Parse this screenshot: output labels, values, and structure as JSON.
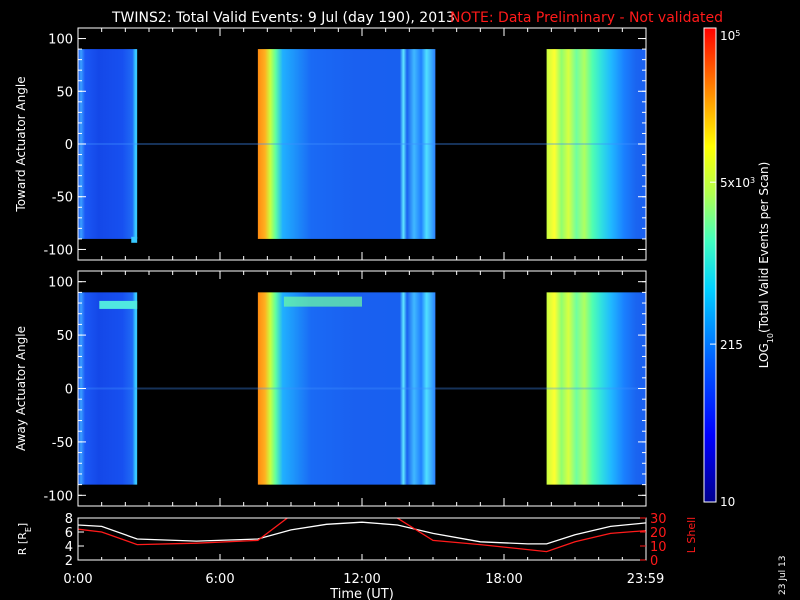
{
  "header": {
    "title": "TWINS2: Total Valid Events:  9 Jul (day 190), 2013",
    "note": "NOTE: Data Preliminary - Not validated"
  },
  "colors": {
    "note_red": "#ff1a1a",
    "axis": "#ffffff",
    "background": "#000000"
  },
  "colorbar": {
    "label": "LOG10(Total Valid Events per Scan)",
    "label_main": "LOG",
    "label_sub": "10",
    "label_rest": "(Total Valid Events per Scan)",
    "ticks": [
      {
        "label": "10",
        "value": 10
      },
      {
        "label": "215",
        "value": 215
      },
      {
        "label": "5x10",
        "sup": "3",
        "value": 5000
      },
      {
        "label": "10",
        "sup": "5",
        "value": 100000
      }
    ],
    "scale": "log",
    "range": [
      10,
      100000
    ]
  },
  "date_stamp": "23 Jul 13",
  "chart_data": [
    {
      "type": "heatmap",
      "name": "toward",
      "ylabel": "Toward Actuator Angle",
      "ylim": [
        -110,
        110
      ],
      "yticks": [
        -100,
        -50,
        0,
        50,
        100
      ],
      "x_unit": "hours UT",
      "segments": [
        {
          "t_start": 0.0,
          "t_end": 2.5,
          "level": "low"
        },
        {
          "t_start": 7.6,
          "t_end": 15.1,
          "level": "high-then-mid"
        },
        {
          "t_start": 19.8,
          "t_end": 24.0,
          "level": "mid"
        }
      ]
    },
    {
      "type": "heatmap",
      "name": "away",
      "ylabel": "Away Actuator Angle",
      "ylim": [
        -110,
        110
      ],
      "yticks": [
        -100,
        -50,
        0,
        50,
        100
      ],
      "x_unit": "hours UT",
      "segments": [
        {
          "t_start": 0.0,
          "t_end": 2.5,
          "level": "low"
        },
        {
          "t_start": 7.6,
          "t_end": 15.1,
          "level": "high-then-mid"
        },
        {
          "t_start": 19.8,
          "t_end": 24.0,
          "level": "mid"
        }
      ]
    },
    {
      "type": "line",
      "name": "orbit",
      "xlabel": "Time (UT)",
      "ylabel_left": "R [R",
      "ylabel_left_sub": "E",
      "ylabel_left_end": "]",
      "ylabel_right": "L Shell",
      "ylim_left": [
        2,
        8
      ],
      "ylim_right": [
        0,
        30
      ],
      "yticks_left": [
        2,
        4,
        6,
        8
      ],
      "yticks_right": [
        0,
        10,
        20,
        30
      ],
      "xticks": [
        {
          "label": "0:00",
          "value": 0
        },
        {
          "label": "6:00",
          "value": 6
        },
        {
          "label": "12:00",
          "value": 12
        },
        {
          "label": "18:00",
          "value": 18
        },
        {
          "label": "23:59",
          "value": 23.98
        }
      ],
      "series": [
        {
          "color": "#ffffff",
          "axis": "left",
          "x": [
            0,
            1,
            2.5,
            5,
            7.6,
            9,
            10.5,
            12,
            13.5,
            15,
            17,
            19,
            19.8,
            21,
            22.5,
            24
          ],
          "y": [
            7.0,
            6.8,
            5.0,
            4.7,
            5.0,
            6.3,
            7.1,
            7.4,
            7.0,
            5.8,
            4.6,
            4.3,
            4.3,
            5.6,
            6.8,
            7.3
          ]
        },
        {
          "color": "#ff1a1a",
          "axis": "right",
          "x": [
            0,
            1,
            2.5,
            5,
            7.6,
            9.0,
            13.3,
            15,
            17,
            19.8,
            21,
            22.5,
            24
          ],
          "y": [
            22,
            20,
            11,
            12,
            14,
            32,
            32,
            14,
            11,
            6,
            13,
            19,
            21
          ]
        }
      ]
    }
  ]
}
